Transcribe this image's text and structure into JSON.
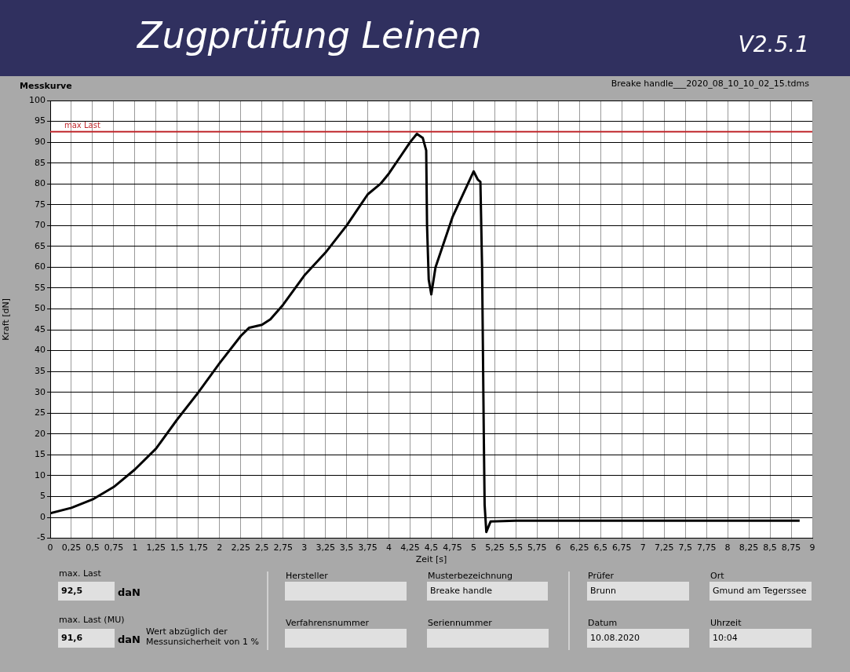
{
  "chart_data": {
    "type": "line",
    "title": "Zugprüfung Leinen",
    "subtitle": "V2.5.1",
    "xlabel": "Zeit [s]",
    "ylabel": "Kraft [dN]",
    "x": [
      0,
      0.25,
      0.5,
      0.75,
      1,
      1.25,
      1.5,
      1.75,
      2,
      2.25,
      2.35,
      2.5,
      2.6,
      2.75,
      3,
      3.25,
      3.5,
      3.75,
      3.9,
      4,
      4.25,
      4.33,
      4.4,
      4.44,
      4.45,
      4.47,
      4.5,
      4.55,
      4.75,
      5,
      5.05,
      5.08,
      5.1,
      5.12,
      5.13,
      5.15,
      5.2,
      5.5,
      6,
      7,
      8,
      8.85
    ],
    "series": [
      {
        "color": "#000000",
        "values": [
          1,
          2.3,
          4.3,
          7.3,
          11.5,
          16.5,
          23.5,
          30,
          37,
          43.5,
          45.5,
          46.2,
          47.5,
          51,
          58,
          63.5,
          70,
          77.5,
          80,
          82.5,
          90,
          92,
          91,
          88,
          70,
          57,
          53.5,
          60,
          72,
          83,
          81,
          80.5,
          60,
          20,
          3,
          -3.5,
          -1,
          -0.8,
          -0.8,
          -0.8,
          -0.8,
          -0.8
        ]
      }
    ],
    "xlim": [
      0,
      9
    ],
    "xticks": [
      0,
      {
        "value": 0.25,
        "label": "0,25"
      },
      {
        "value": 0.5,
        "label": "0,5"
      },
      {
        "value": 0.75,
        "label": "0,75"
      },
      1,
      {
        "value": 1.25,
        "label": "1,25"
      },
      {
        "value": 1.5,
        "label": "1,5"
      },
      {
        "value": 1.75,
        "label": "1,75"
      },
      2,
      {
        "value": 2.25,
        "label": "2,25"
      },
      {
        "value": 2.5,
        "label": "2,5"
      },
      {
        "value": 2.75,
        "label": "2,75"
      },
      3,
      {
        "value": 3.25,
        "label": "3,25"
      },
      {
        "value": 3.5,
        "label": "3,5"
      },
      {
        "value": 3.75,
        "label": "3,75"
      },
      4,
      {
        "value": 4.25,
        "label": "4,25"
      },
      {
        "value": 4.5,
        "label": "4,5"
      },
      {
        "value": 4.75,
        "label": "4,75"
      },
      5,
      {
        "value": 5.25,
        "label": "5,25"
      },
      {
        "value": 5.5,
        "label": "5,5"
      },
      {
        "value": 5.75,
        "label": "5,75"
      },
      6,
      {
        "value": 6.25,
        "label": "6,25"
      },
      {
        "value": 6.5,
        "label": "6,5"
      },
      {
        "value": 6.75,
        "label": "6,75"
      },
      7,
      {
        "value": 7.25,
        "label": "7,25"
      },
      {
        "value": 7.5,
        "label": "7,5"
      },
      {
        "value": 7.75,
        "label": "7,75"
      },
      8,
      {
        "value": 8.25,
        "label": "8,25"
      },
      {
        "value": 8.5,
        "label": "8,5"
      },
      {
        "value": 8.75,
        "label": "8,75"
      },
      9
    ],
    "ylim": [
      -5,
      100
    ],
    "yticks": [
      -5,
      0,
      5,
      10,
      15,
      20,
      25,
      30,
      35,
      40,
      45,
      50,
      55,
      60,
      65,
      70,
      75,
      80,
      85,
      90,
      95,
      100
    ],
    "grid": true,
    "legend": false,
    "marker": "none",
    "line_style": "solid",
    "ref_lines": [
      {
        "axis": "y",
        "value": 92.5,
        "label": "max Last",
        "color": "#c0282d"
      }
    ],
    "annotations": [
      "Messkurve",
      "Breake handle___2020_08_10_10_02_15.tdms",
      "max. Last",
      "92,5",
      "daN",
      "max. Last (MU)",
      "91,6",
      "daN",
      "Wert abzüglich der Messunsicherheit von 1 %",
      "Hersteller",
      "Musterbezeichnung",
      "Breake handle",
      "Verfahrensnummer",
      "Seriennummer",
      "Prüfer",
      "Brunn",
      "Ort",
      "Gmund am Tegerssee",
      "Datum",
      "10.08.2020",
      "Uhrzeit",
      "10:04"
    ]
  }
}
